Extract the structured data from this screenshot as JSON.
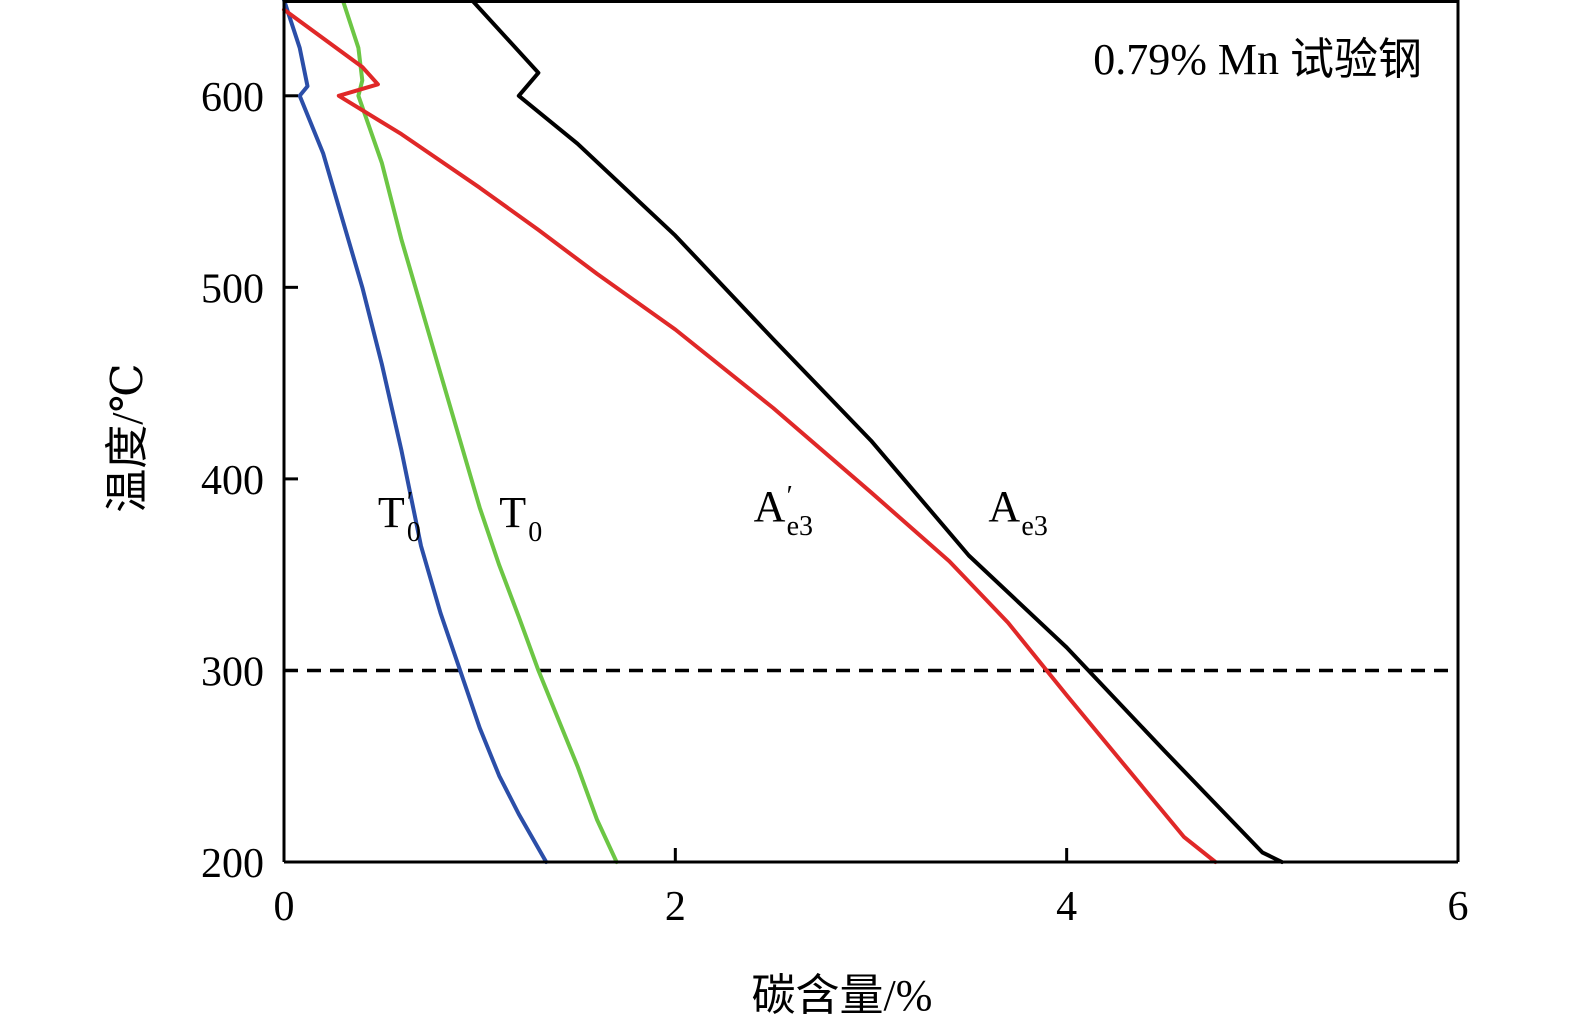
{
  "chart_data": {
    "type": "line",
    "title": "",
    "annotation": "0.79% Mn 试验钢",
    "xlabel": "碳含量/%",
    "ylabel": "温度/℃",
    "xlim": [
      0,
      6
    ],
    "ylim": [
      200,
      650
    ],
    "xticks": [
      0,
      2,
      4,
      6
    ],
    "yticks": [
      200,
      300,
      400,
      500,
      600
    ],
    "grid": false,
    "legend": "none",
    "reference_line": {
      "y": 300,
      "style": "dashed",
      "color": "#000000"
    },
    "series": [
      {
        "id": "t0prime",
        "label_main": "T",
        "label_sub": "0",
        "label_prime": "′",
        "label_at": [
          0.48,
          375
        ],
        "color": "#2b4ea8",
        "points": [
          [
            0,
            650
          ],
          [
            0.08,
            625
          ],
          [
            0.12,
            605
          ],
          [
            0.08,
            600
          ],
          [
            0.2,
            570
          ],
          [
            0.3,
            535
          ],
          [
            0.4,
            500
          ],
          [
            0.5,
            460
          ],
          [
            0.6,
            415
          ],
          [
            0.7,
            365
          ],
          [
            0.8,
            330
          ],
          [
            0.9,
            300
          ],
          [
            1.0,
            270
          ],
          [
            1.1,
            245
          ],
          [
            1.2,
            225
          ],
          [
            1.34,
            200
          ]
        ]
      },
      {
        "id": "t0",
        "label_main": "T",
        "label_sub": "0",
        "label_prime": "",
        "label_at": [
          1.1,
          375
        ],
        "color": "#6cc644",
        "points": [
          [
            0.3,
            650
          ],
          [
            0.38,
            625
          ],
          [
            0.4,
            608
          ],
          [
            0.38,
            600
          ],
          [
            0.5,
            565
          ],
          [
            0.6,
            525
          ],
          [
            0.7,
            490
          ],
          [
            0.8,
            455
          ],
          [
            0.9,
            420
          ],
          [
            1.0,
            385
          ],
          [
            1.1,
            355
          ],
          [
            1.2,
            328
          ],
          [
            1.3,
            300
          ],
          [
            1.4,
            275
          ],
          [
            1.5,
            250
          ],
          [
            1.6,
            222
          ],
          [
            1.7,
            200
          ]
        ]
      },
      {
        "id": "ae3prime",
        "label_main": "A",
        "label_sub": "e3",
        "label_prime": "′",
        "label_at": [
          2.4,
          378
        ],
        "color": "#e02828",
        "points": [
          [
            0,
            645
          ],
          [
            0.4,
            615
          ],
          [
            0.48,
            606
          ],
          [
            0.28,
            600
          ],
          [
            0.6,
            580
          ],
          [
            1.0,
            552
          ],
          [
            1.3,
            530
          ],
          [
            1.6,
            507
          ],
          [
            2.0,
            478
          ],
          [
            2.5,
            437
          ],
          [
            3.0,
            393
          ],
          [
            3.4,
            357
          ],
          [
            3.7,
            325
          ],
          [
            4.0,
            287
          ],
          [
            4.3,
            250
          ],
          [
            4.6,
            213
          ],
          [
            4.76,
            200
          ]
        ]
      },
      {
        "id": "ae3",
        "label_main": "A",
        "label_sub": "e3",
        "label_prime": "",
        "label_at": [
          3.6,
          378
        ],
        "color": "#000000",
        "points": [
          [
            0.96,
            650
          ],
          [
            1.3,
            612
          ],
          [
            1.2,
            600
          ],
          [
            1.5,
            575
          ],
          [
            2.0,
            527
          ],
          [
            2.5,
            473
          ],
          [
            3.0,
            420
          ],
          [
            3.5,
            360
          ],
          [
            4.0,
            312
          ],
          [
            4.5,
            258
          ],
          [
            5.0,
            205
          ],
          [
            5.1,
            200
          ]
        ]
      }
    ]
  }
}
